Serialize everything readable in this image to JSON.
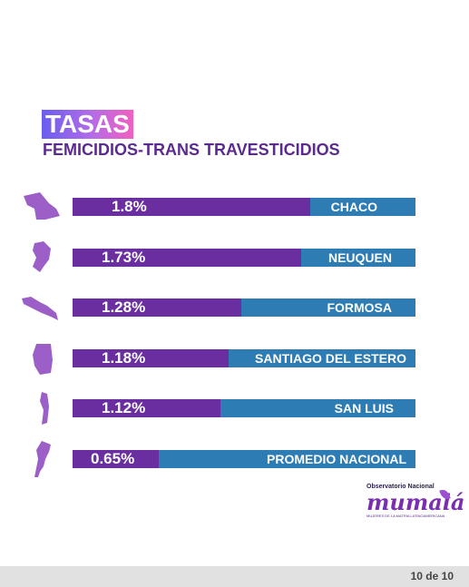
{
  "header": {
    "title": "TASAS",
    "subtitle": "FEMICIDIOS-TRANS TRAVESTICIDIOS"
  },
  "chart_data": {
    "type": "bar",
    "orientation": "horizontal",
    "categories": [
      "CHACO",
      "NEUQUEN",
      "FORMOSA",
      "SANTIAGO DEL ESTERO",
      "SAN LUIS",
      "PROMEDIO NACIONAL"
    ],
    "values": [
      1.8,
      1.73,
      1.28,
      1.18,
      1.12,
      0.65
    ],
    "value_labels": [
      "1.8%",
      "1.73%",
      "1.28%",
      "1.18%",
      "1.12%",
      "0.65%"
    ],
    "icons": [
      "chaco-map-icon",
      "neuquen-map-icon",
      "formosa-map-icon",
      "santiago-del-estero-map-icon",
      "san-luis-map-icon",
      "argentina-map-icon"
    ],
    "xlim": [
      0,
      2.6
    ],
    "title": "TASAS",
    "subtitle": "FEMICIDIOS-TRANS TRAVESTICIDIOS",
    "colors": {
      "fill": "#6a2ea0",
      "track": "#2d7cb4",
      "icon": "#9b5fc7"
    },
    "grid": false,
    "legend": "none"
  },
  "logo": {
    "top_text": "Observatorio Nacional",
    "main_text": "mumalá",
    "bottom_text": "MUJERES DE LA MATRIA LATINOAMERICANA"
  },
  "footer": {
    "page": "10 de 10"
  }
}
